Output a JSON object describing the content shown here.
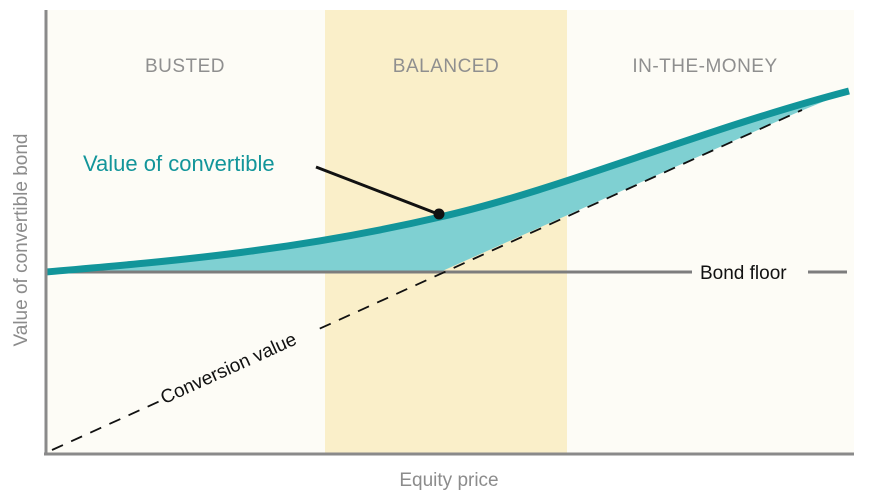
{
  "zones": {
    "busted": "BUSTED",
    "balanced": "BALANCED",
    "in_the_money": "IN-THE-MONEY"
  },
  "axes": {
    "y_label": "Value of convertible bond",
    "x_label": "Equity price"
  },
  "labels": {
    "value_of_convertible": "Value of convertible",
    "bond_floor": "Bond floor",
    "conversion_value": "Conversion value"
  },
  "colors": {
    "busted_bg": "#fdfcf6",
    "balanced_bg": "#faefc9",
    "itm_bg": "#fdfcf6",
    "convertible_line": "#12959a",
    "premium_fill": "#7fd0d2",
    "bond_floor": "#7d7d7d",
    "conversion_line": "#111111",
    "axis": "#8a8a8a",
    "callout_text": "#12959a"
  }
}
